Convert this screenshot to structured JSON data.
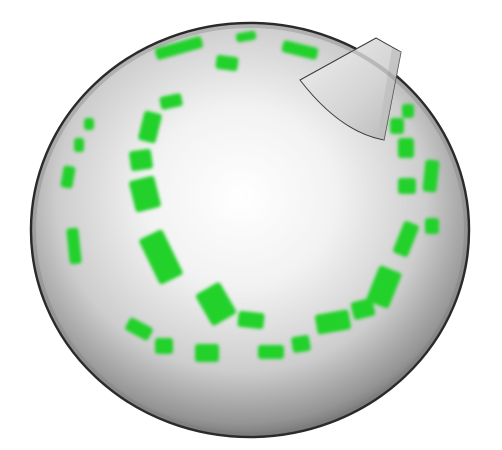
{
  "scene": {
    "subject": "sphere",
    "background_color": "#ffffff",
    "sphere_highlight_color": "#ffffff",
    "sphere_midtone_color": "#d6d6d6",
    "sphere_shadow_color": "#7a7a7a",
    "sphere_edge_color": "#2a2a2a",
    "fin_color": "#dcdcdc",
    "fin_shadow_color": "#9a9a9a",
    "marker_color": "#22d12c",
    "marker_glow_color": "#8ff08f"
  }
}
